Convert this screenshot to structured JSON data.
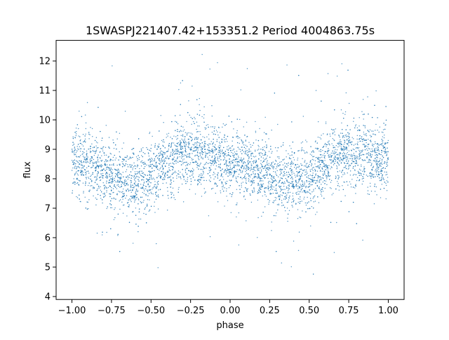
{
  "chart_data": {
    "type": "scatter",
    "title": "1SWASPJ221407.42+153351.2 Period 4004863.75s",
    "xlabel": "phase",
    "ylabel": "flux",
    "xlim": [
      -1.1,
      1.1
    ],
    "ylim": [
      3.9,
      12.7
    ],
    "xticks": [
      -1.0,
      -0.75,
      -0.5,
      -0.25,
      0.0,
      0.25,
      0.5,
      0.75,
      1.0
    ],
    "xtick_labels": [
      "−1.00",
      "−0.75",
      "−0.50",
      "−0.25",
      "0.00",
      "0.25",
      "0.50",
      "0.75",
      "1.00"
    ],
    "yticks": [
      4,
      5,
      6,
      7,
      8,
      9,
      10,
      11,
      12
    ],
    "ytick_labels": [
      "4",
      "5",
      "6",
      "7",
      "8",
      "9",
      "10",
      "11",
      "12"
    ],
    "grid": false,
    "series": [
      {
        "color": "#1f77b4",
        "marker": "dot",
        "description_points": {
          "x": [
            -1.0,
            -0.95,
            -0.9,
            -0.85,
            -0.8,
            -0.75,
            -0.7,
            -0.65,
            -0.6,
            -0.55,
            -0.5,
            -0.45,
            -0.4,
            -0.35,
            -0.3,
            -0.25,
            -0.2,
            -0.15,
            -0.1,
            -0.05,
            0.0,
            0.05,
            0.1,
            0.15,
            0.2,
            0.25,
            0.3,
            0.35,
            0.4,
            0.45,
            0.5,
            0.55,
            0.6,
            0.65,
            0.7,
            0.75,
            0.8,
            0.85,
            0.9,
            0.95,
            1.0
          ],
          "y": [
            8.6,
            8.5,
            8.4,
            8.3,
            8.2,
            8.1,
            8.0,
            7.9,
            7.9,
            8.0,
            8.1,
            8.3,
            8.5,
            8.7,
            8.8,
            8.9,
            8.9,
            8.8,
            8.7,
            8.6,
            8.6,
            8.5,
            8.4,
            8.3,
            8.2,
            8.1,
            8.0,
            7.9,
            7.9,
            8.0,
            8.1,
            8.3,
            8.5,
            8.7,
            8.8,
            8.9,
            8.9,
            8.8,
            8.7,
            8.6,
            8.6
          ]
        }
      }
    ]
  }
}
